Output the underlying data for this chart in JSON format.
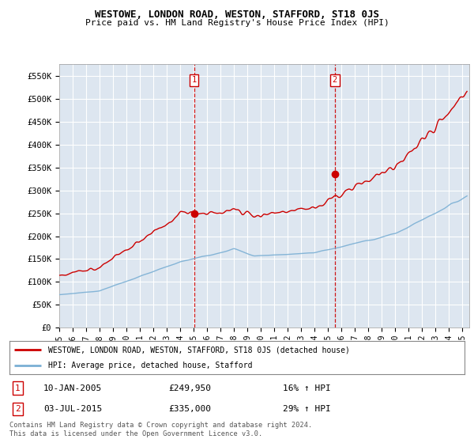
{
  "title": "WESTOWE, LONDON ROAD, WESTON, STAFFORD, ST18 0JS",
  "subtitle": "Price paid vs. HM Land Registry's House Price Index (HPI)",
  "ylabel_ticks": [
    "£0",
    "£50K",
    "£100K",
    "£150K",
    "£200K",
    "£250K",
    "£300K",
    "£350K",
    "£400K",
    "£450K",
    "£500K",
    "£550K"
  ],
  "ytick_values": [
    0,
    50000,
    100000,
    150000,
    200000,
    250000,
    300000,
    350000,
    400000,
    450000,
    500000,
    550000
  ],
  "ylim": [
    0,
    575000
  ],
  "xlim_start": 1995.0,
  "xlim_end": 2025.5,
  "background_color": "#dde6f0",
  "grid_color": "#ffffff",
  "line1_color": "#cc0000",
  "line2_color": "#7aafd4",
  "vline_color": "#cc0000",
  "event1_x": 2005.03,
  "event1_label": "1",
  "event1_y_marker": 249950,
  "event2_x": 2015.5,
  "event2_label": "2",
  "event2_y_marker": 335000,
  "legend_line1": "WESTOWE, LONDON ROAD, WESTON, STAFFORD, ST18 0JS (detached house)",
  "legend_line2": "HPI: Average price, detached house, Stafford",
  "annotation1_date": "10-JAN-2005",
  "annotation1_price": "£249,950",
  "annotation1_hpi": "16% ↑ HPI",
  "annotation2_date": "03-JUL-2015",
  "annotation2_price": "£335,000",
  "annotation2_hpi": "29% ↑ HPI",
  "footer": "Contains HM Land Registry data © Crown copyright and database right 2024.\nThis data is licensed under the Open Government Licence v3.0."
}
